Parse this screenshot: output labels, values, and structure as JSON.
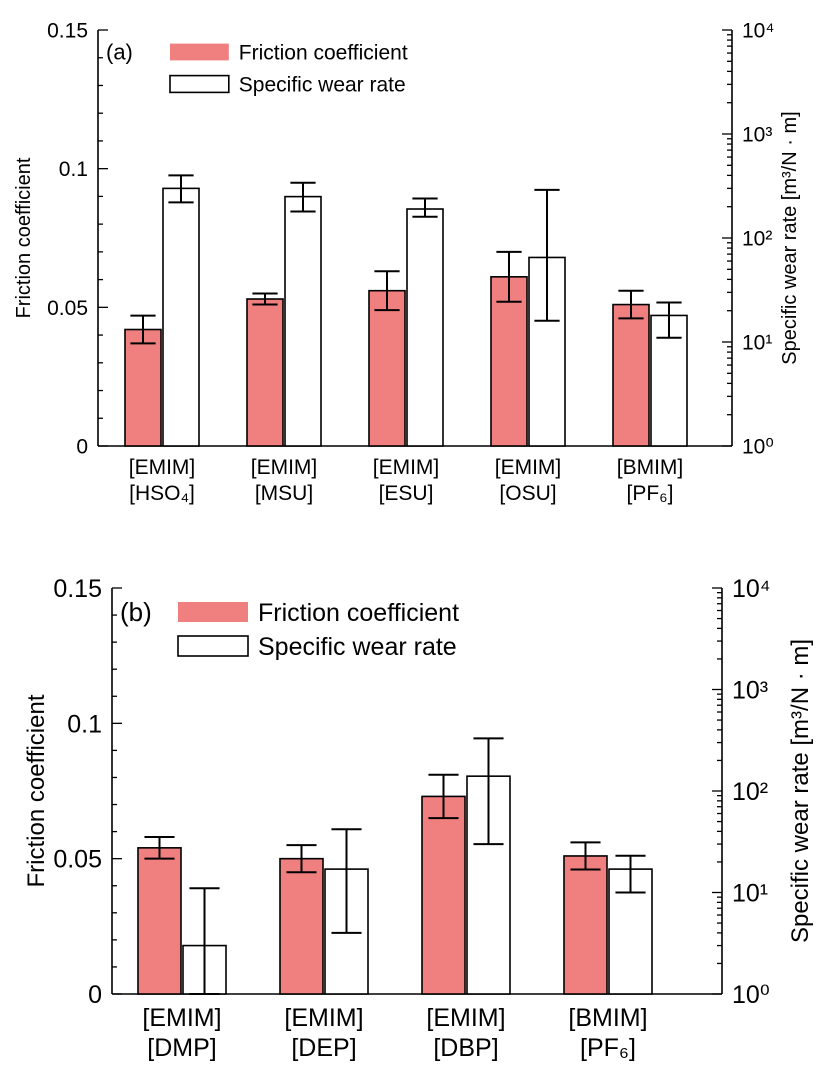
{
  "colors": {
    "friction": "#f08080",
    "wear": "#ffffff",
    "axis": "#000000"
  },
  "chart_data": [
    {
      "type": "bar",
      "panel_label": "(a)",
      "legend": [
        "Friction coefficient",
        "Specific wear rate"
      ],
      "legend_placement": "top-left",
      "ylabel": "Friction coefficient",
      "ylabel_right": "Specific wear rate [m³/N · m]",
      "ylim": [
        0,
        0.15
      ],
      "yticks": [
        "0",
        "0.05",
        "0.1",
        "0.15"
      ],
      "y2lim": [
        1,
        10000
      ],
      "y2_scale": "log",
      "y2ticks": [
        "10⁰",
        "10¹",
        "10²",
        "10³",
        "10⁴"
      ],
      "grid": false,
      "categories": [
        [
          "[EMIM]",
          "[HSO₄]"
        ],
        [
          "[EMIM]",
          "[MSU]"
        ],
        [
          "[EMIM]",
          "[ESU]"
        ],
        [
          "[EMIM]",
          "[OSU]"
        ],
        [
          "[BMIM]",
          "[PF₆]"
        ]
      ],
      "series": [
        {
          "name": "Friction coefficient",
          "axis": "left",
          "values": [
            0.042,
            0.053,
            0.056,
            0.061,
            0.051
          ],
          "error": [
            0.005,
            0.002,
            0.007,
            0.009,
            0.005
          ]
        },
        {
          "name": "Specific wear rate",
          "axis": "right",
          "values": [
            300,
            250,
            190,
            65,
            18
          ],
          "error_low": [
            220,
            180,
            160,
            16,
            11
          ],
          "error_high": [
            400,
            340,
            240,
            290,
            24
          ]
        }
      ]
    },
    {
      "type": "bar",
      "panel_label": "(b)",
      "legend": [
        "Friction coefficient",
        "Specific wear rate"
      ],
      "legend_placement": "top-left",
      "ylabel": "Friction coefficient",
      "ylabel_right": "Specific wear rate [m³/N · m]",
      "ylim": [
        0,
        0.15
      ],
      "yticks": [
        "0",
        "0.05",
        "0.1",
        "0.15"
      ],
      "y2lim": [
        1,
        10000
      ],
      "y2_scale": "log",
      "y2ticks": [
        "10⁰",
        "10¹",
        "10²",
        "10³",
        "10⁴"
      ],
      "grid": false,
      "categories": [
        [
          "[EMIM]",
          "[DMP]"
        ],
        [
          "[EMIM]",
          "[DEP]"
        ],
        [
          "[EMIM]",
          "[DBP]"
        ],
        [
          "[BMIM]",
          "[PF₆]"
        ]
      ],
      "series": [
        {
          "name": "Friction coefficient",
          "axis": "left",
          "values": [
            0.054,
            0.05,
            0.073,
            0.051
          ],
          "error": [
            0.004,
            0.005,
            0.008,
            0.005
          ]
        },
        {
          "name": "Specific wear rate",
          "axis": "right",
          "values": [
            3,
            17,
            140,
            17
          ],
          "error_low": [
            1,
            4,
            30,
            10
          ],
          "error_high": [
            11,
            42,
            330,
            23
          ]
        }
      ]
    }
  ]
}
